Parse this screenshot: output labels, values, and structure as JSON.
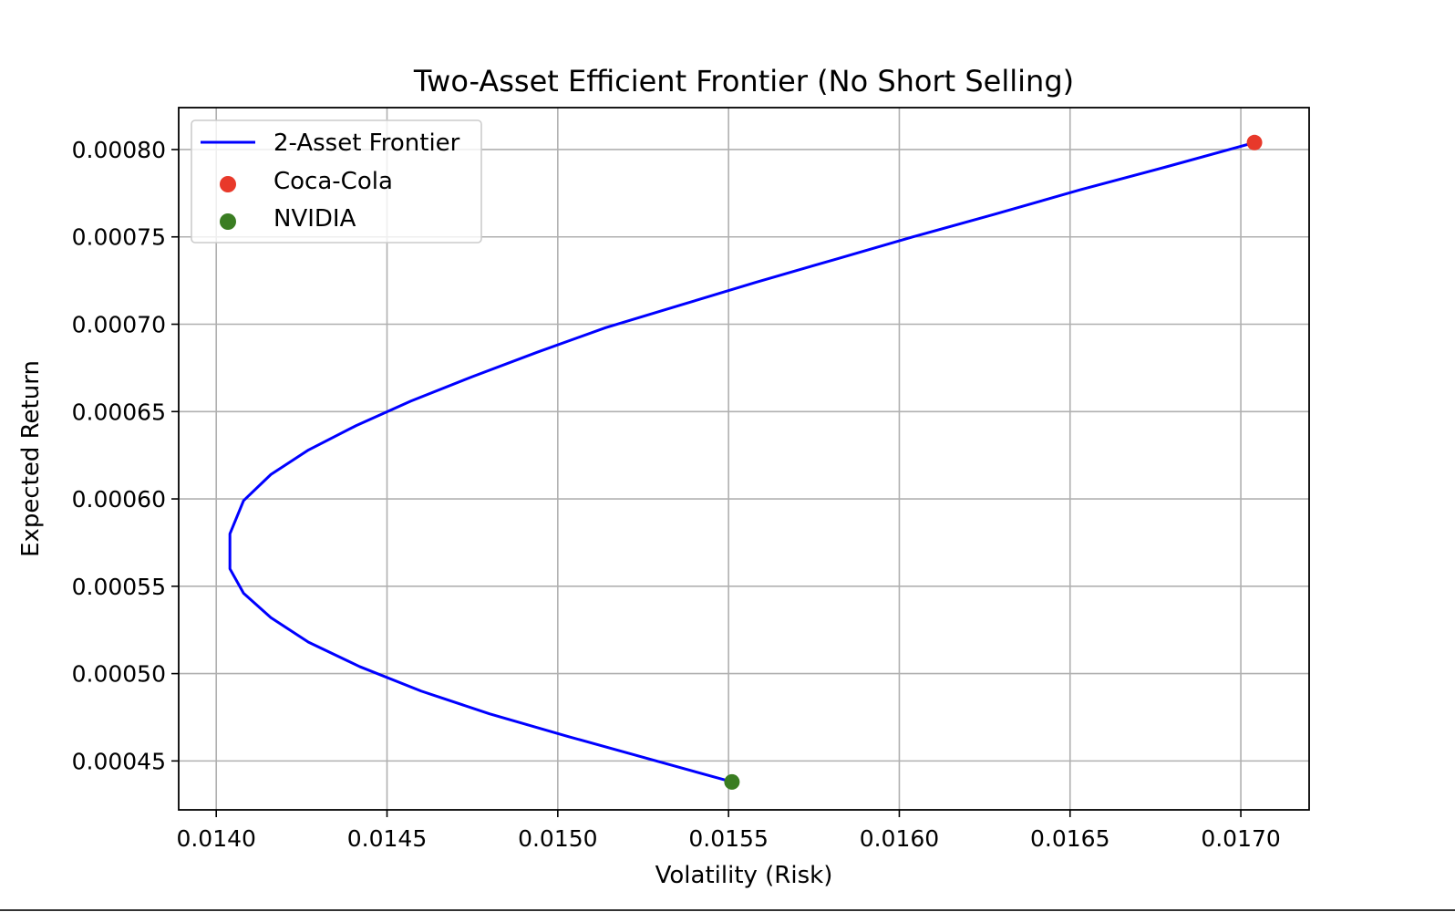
{
  "chart_data": {
    "type": "line",
    "title": "Two-Asset Efficient Frontier (No Short Selling)",
    "xlabel": "Volatility (Risk)",
    "ylabel": "Expected Return",
    "xlim": [
      0.01389,
      0.0172
    ],
    "ylim": [
      0.000422,
      0.000824
    ],
    "x_ticks": [
      0.014,
      0.0145,
      0.015,
      0.0155,
      0.016,
      0.0165,
      0.017
    ],
    "x_tick_labels": [
      "0.0140",
      "0.0145",
      "0.0150",
      "0.0155",
      "0.0160",
      "0.0165",
      "0.0170"
    ],
    "y_ticks": [
      0.00045,
      0.0005,
      0.00055,
      0.0006,
      0.00065,
      0.0007,
      0.00075,
      0.0008
    ],
    "y_tick_labels": [
      "0.00045",
      "0.00050",
      "0.00055",
      "0.00060",
      "0.00065",
      "0.00070",
      "0.00075",
      "0.00080"
    ],
    "grid": true,
    "legend_position": "top-left",
    "series": [
      {
        "name": "2-Asset Frontier",
        "kind": "line",
        "color": "#0000ff",
        "x": [
          0.01551,
          0.01527,
          0.01503,
          0.0148,
          0.0146,
          0.01442,
          0.01427,
          0.01416,
          0.01408,
          0.01404,
          0.01404,
          0.01408,
          0.01416,
          0.01427,
          0.01441,
          0.01457,
          0.01475,
          0.01494,
          0.01514,
          0.01536,
          0.01558,
          0.01581,
          0.01604,
          0.01628,
          0.01653,
          0.01678,
          0.01704
        ],
        "y": [
          0.000438,
          0.000451,
          0.000464,
          0.000477,
          0.00049,
          0.000504,
          0.000518,
          0.000532,
          0.000546,
          0.00056,
          0.00058,
          0.000599,
          0.000614,
          0.000628,
          0.000642,
          0.000656,
          0.00067,
          0.000684,
          0.000698,
          0.000711,
          0.000724,
          0.000737,
          0.00075,
          0.000763,
          0.000777,
          0.00079,
          0.000804
        ]
      },
      {
        "name": "Coca-Cola",
        "kind": "scatter",
        "color": "#e8392a",
        "x": [
          0.01704
        ],
        "y": [
          0.000804
        ]
      },
      {
        "name": "NVIDIA",
        "kind": "scatter",
        "color": "#3a7d22",
        "x": [
          0.01551
        ],
        "y": [
          0.000438
        ]
      }
    ]
  }
}
